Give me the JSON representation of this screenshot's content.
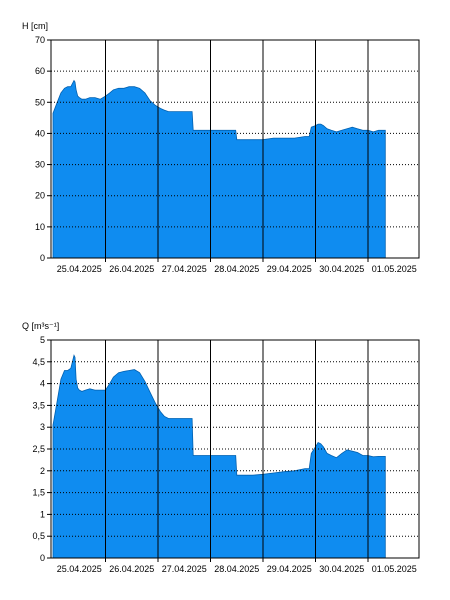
{
  "chart_data": [
    {
      "type": "area",
      "title": "",
      "ylabel": "H [cm]",
      "xlabel": "",
      "ylim": [
        0,
        70
      ],
      "ytick_step": 10,
      "yticks": [
        "0",
        "10",
        "20",
        "30",
        "40",
        "50",
        "60",
        "70"
      ],
      "xlim": [
        0,
        7
      ],
      "x_categories": [
        "25.04.2025",
        "26.04.2025",
        "27.04.2025",
        "28.04.2025",
        "29.04.2025",
        "30.04.2025",
        "01.05.2025"
      ],
      "grid": {
        "horizontal": "dotted",
        "vertical": "solid"
      },
      "fill_color": "#0f8cf0",
      "series": [
        {
          "x": [
            0.0,
            0.08,
            0.15,
            0.22,
            0.28,
            0.34,
            0.4,
            0.42,
            0.44,
            0.47,
            0.5,
            0.55,
            0.62,
            0.7,
            0.8,
            0.9,
            1.0,
            1.08,
            1.15,
            1.25,
            1.35,
            1.45,
            1.55,
            1.65,
            1.75,
            1.85,
            1.95,
            2.0,
            2.05,
            2.12,
            2.2,
            2.3,
            2.4,
            2.5,
            2.6,
            2.65,
            2.67,
            2.7,
            2.8,
            3.0,
            3.2,
            3.4,
            3.48,
            3.5,
            3.6,
            3.8,
            4.0,
            4.2,
            4.4,
            4.6,
            4.8,
            4.88,
            4.92,
            5.0,
            5.05,
            5.1,
            5.15,
            5.22,
            5.3,
            5.4,
            5.5,
            5.6,
            5.7,
            5.8,
            5.9,
            6.0,
            6.1,
            6.2,
            6.3,
            6.33
          ],
          "y": [
            46.5,
            50,
            53,
            54.5,
            55,
            55,
            57,
            56.5,
            54,
            52,
            51.5,
            51,
            51,
            51.5,
            51.5,
            51,
            52,
            53,
            54,
            54.5,
            54.5,
            55,
            55,
            54.5,
            53,
            50.5,
            49,
            48.5,
            48,
            47.5,
            47,
            47,
            47,
            47,
            47,
            47,
            41,
            41,
            41,
            41,
            41,
            41,
            41,
            38,
            38,
            38,
            38,
            38.5,
            38.5,
            38.5,
            39,
            39,
            42,
            42.5,
            43,
            43,
            42.5,
            41.5,
            41,
            40.5,
            41,
            41.5,
            42,
            41.5,
            41,
            41,
            40.5,
            41,
            41,
            41
          ]
        }
      ]
    },
    {
      "type": "area",
      "title": "",
      "ylabel": "Q [m³s⁻¹]",
      "xlabel": "",
      "ylim": [
        0,
        5
      ],
      "ytick_step": 0.5,
      "yticks": [
        "0",
        "0,5",
        "1",
        "1,5",
        "2",
        "2,5",
        "3",
        "3,5",
        "4",
        "4,5",
        "5"
      ],
      "xlim": [
        0,
        7
      ],
      "x_categories": [
        "25.04.2025",
        "26.04.2025",
        "27.04.2025",
        "28.04.2025",
        "29.04.2025",
        "30.04.2025",
        "01.05.2025"
      ],
      "grid": {
        "horizontal": "dotted",
        "vertical": "solid"
      },
      "fill_color": "#0f8cf0",
      "series": [
        {
          "x": [
            0.0,
            0.08,
            0.15,
            0.22,
            0.28,
            0.34,
            0.4,
            0.42,
            0.44,
            0.47,
            0.5,
            0.55,
            0.62,
            0.7,
            0.8,
            0.9,
            1.0,
            1.08,
            1.15,
            1.25,
            1.35,
            1.45,
            1.55,
            1.65,
            1.75,
            1.85,
            1.95,
            2.0,
            2.05,
            2.12,
            2.2,
            2.3,
            2.4,
            2.5,
            2.6,
            2.65,
            2.67,
            2.7,
            2.8,
            3.0,
            3.2,
            3.4,
            3.48,
            3.5,
            3.6,
            3.8,
            4.0,
            4.2,
            4.4,
            4.6,
            4.8,
            4.88,
            4.92,
            5.0,
            5.05,
            5.1,
            5.15,
            5.22,
            5.3,
            5.4,
            5.5,
            5.6,
            5.7,
            5.8,
            5.9,
            6.0,
            6.1,
            6.2,
            6.3,
            6.33
          ],
          "y": [
            3.05,
            3.6,
            4.1,
            4.3,
            4.3,
            4.35,
            4.65,
            4.6,
            4.1,
            3.9,
            3.85,
            3.82,
            3.85,
            3.88,
            3.85,
            3.85,
            3.85,
            4.0,
            4.15,
            4.25,
            4.28,
            4.3,
            4.32,
            4.25,
            4.05,
            3.8,
            3.55,
            3.45,
            3.35,
            3.25,
            3.2,
            3.2,
            3.2,
            3.2,
            3.2,
            3.2,
            2.35,
            2.35,
            2.35,
            2.35,
            2.35,
            2.35,
            2.35,
            1.9,
            1.9,
            1.9,
            1.92,
            1.95,
            1.98,
            2.0,
            2.05,
            2.05,
            2.4,
            2.55,
            2.65,
            2.62,
            2.55,
            2.4,
            2.35,
            2.3,
            2.4,
            2.48,
            2.45,
            2.42,
            2.35,
            2.35,
            2.32,
            2.33,
            2.33,
            2.33
          ]
        }
      ]
    }
  ]
}
